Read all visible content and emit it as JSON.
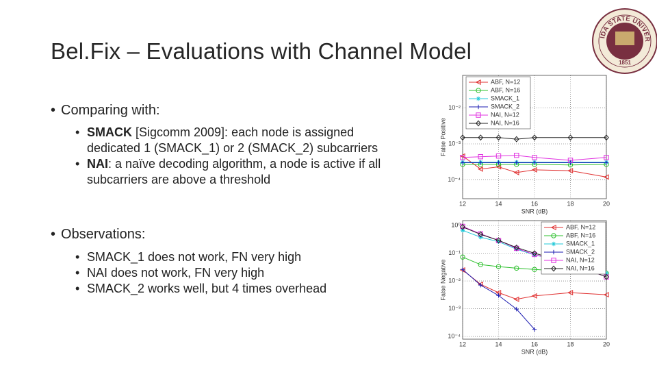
{
  "title": "Bel.Fix – Evaluations with Channel Model",
  "logo": {
    "name": "FLORIDA STATE UNIVERSITY",
    "year": "1851"
  },
  "bullets": [
    {
      "text": "Comparing with:",
      "items": [
        {
          "bold": "SMACK",
          "text": " [Sigcomm 2009]: each node is assigned dedicated 1 (SMACK_1) or 2 (SMACK_2) subcarriers"
        },
        {
          "bold": "NAI",
          "text": ": a naïve decoding algorithm, a node is active if all subcarriers are above a threshold"
        }
      ]
    },
    {
      "text": "Observations:",
      "items": [
        {
          "text": "SMACK_1 does not work, FN very high"
        },
        {
          "text": "NAI does not work, FN very high"
        },
        {
          "text": "SMACK_2 works well, but 4 times overhead"
        }
      ]
    }
  ],
  "chart_data": [
    {
      "type": "line",
      "xlabel": "SNR (dB)",
      "ylabel": "False Positive",
      "ylog": true,
      "grid": true,
      "legend": "upper left",
      "x": [
        12,
        13,
        14,
        15,
        16,
        18,
        20
      ],
      "xlim": [
        12,
        20
      ],
      "xticks": [
        12,
        14,
        16,
        18,
        20
      ],
      "ylim": [
        3e-05,
        0.08
      ],
      "yticks": [
        {
          "value": 0.0001,
          "label": "10⁻⁴"
        },
        {
          "value": 0.001,
          "label": "10⁻³"
        },
        {
          "value": 0.01,
          "label": "10⁻²"
        }
      ],
      "series": [
        {
          "name": "ABF, N=12",
          "color": "#e03030",
          "marker": "triangle",
          "values": [
            0.00046,
            0.0002,
            0.00023,
            0.00016,
            0.00019,
            0.00018,
            0.00012
          ]
        },
        {
          "name": "ABF, N=16",
          "color": "#2ec02e",
          "marker": "circle",
          "values": [
            0.00027,
            0.00027,
            0.00027,
            0.00027,
            0.00027,
            0.00026,
            0.00027
          ]
        },
        {
          "name": "SMACK_1",
          "color": "#20c8d8",
          "marker": "star",
          "values": [
            0.00031,
            0.00031,
            0.00031,
            0.00031,
            0.00031,
            0.00031,
            0.00031
          ]
        },
        {
          "name": "SMACK_2",
          "color": "#1a1ab0",
          "marker": "plus",
          "values": [
            0.0003,
            0.0003,
            0.0003,
            0.0003,
            0.0003,
            0.0003,
            0.0003
          ]
        },
        {
          "name": "NAI, N=12",
          "color": "#e030e0",
          "marker": "square",
          "values": [
            0.00042,
            0.00044,
            0.00046,
            0.00048,
            0.00042,
            0.00035,
            0.00042
          ]
        },
        {
          "name": "NAI, N=16",
          "color": "#222222",
          "marker": "diamond",
          "values": [
            0.0015,
            0.0015,
            0.0015,
            0.00135,
            0.0015,
            0.0015,
            0.0015
          ]
        }
      ]
    },
    {
      "type": "line",
      "xlabel": "SNR (dB)",
      "ylabel": "False Negative",
      "ylog": true,
      "grid": true,
      "legend": "upper right",
      "x": [
        12,
        13,
        14,
        15,
        16,
        18,
        20
      ],
      "xlim": [
        12,
        20
      ],
      "xticks": [
        12,
        14,
        16,
        18,
        20
      ],
      "ylim": [
        8e-05,
        1.5
      ],
      "yticks": [
        {
          "value": 0.0001,
          "label": "10⁻⁴"
        },
        {
          "value": 0.001,
          "label": "10⁻³"
        },
        {
          "value": 0.01,
          "label": "10⁻²"
        },
        {
          "value": 0.1,
          "label": "10⁻¹"
        },
        {
          "value": 1,
          "label": "10⁰"
        }
      ],
      "series": [
        {
          "name": "ABF, N=12",
          "color": "#e03030",
          "marker": "triangle",
          "values": [
            0.025,
            0.0076,
            0.0038,
            0.0022,
            0.0029,
            0.0038,
            0.0032
          ]
        },
        {
          "name": "ABF, N=16",
          "color": "#2ec02e",
          "marker": "circle",
          "values": [
            0.073,
            0.039,
            0.033,
            0.029,
            0.026,
            0.022,
            0.019
          ]
        },
        {
          "name": "SMACK_1",
          "color": "#20c8d8",
          "marker": "star",
          "values": [
            0.67,
            0.38,
            0.26,
            0.14,
            0.087,
            0.044,
            0.019
          ]
        },
        {
          "name": "SMACK_2",
          "color": "#1a1ab0",
          "marker": "plus",
          "values": [
            0.026,
            0.0071,
            0.003,
            0.00097,
            0.00018,
            null,
            null
          ]
        },
        {
          "name": "NAI, N=12",
          "color": "#e030e0",
          "marker": "square",
          "values": [
            0.93,
            0.5,
            0.29,
            0.15,
            0.09,
            0.042,
            0.014
          ]
        },
        {
          "name": "NAI, N=16",
          "color": "#222222",
          "marker": "diamond",
          "values": [
            0.89,
            0.48,
            0.29,
            0.16,
            0.1,
            0.044,
            0.014
          ]
        }
      ]
    }
  ]
}
